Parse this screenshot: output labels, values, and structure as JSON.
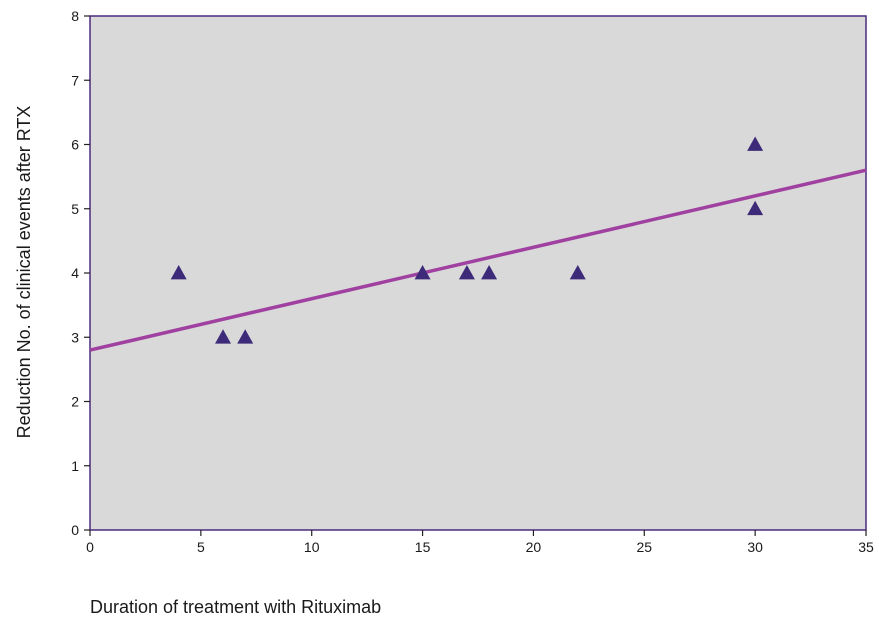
{
  "chart_data": {
    "type": "scatter",
    "title": "",
    "xlabel": "Duration of treatment with Rituximab",
    "ylabel": "Reduction No. of clinical events after RTX",
    "xlim": [
      0,
      35
    ],
    "ylim": [
      0,
      8
    ],
    "x_ticks": [
      "0",
      "5",
      "10",
      "15",
      "20",
      "25",
      "30",
      "35"
    ],
    "y_ticks": [
      "0",
      "1",
      "2",
      "3",
      "4",
      "5",
      "6",
      "7",
      "8"
    ],
    "grid": false,
    "plot_background": "#d9d9d9",
    "frame_color": "#4b2a7e",
    "point_marker": "triangle",
    "point_color": "#3d2a78",
    "line_color": "#a040a0",
    "points": [
      {
        "x": 4,
        "y": 4
      },
      {
        "x": 6,
        "y": 3
      },
      {
        "x": 7,
        "y": 3
      },
      {
        "x": 15,
        "y": 4
      },
      {
        "x": 17,
        "y": 4
      },
      {
        "x": 18,
        "y": 4
      },
      {
        "x": 22,
        "y": 4
      },
      {
        "x": 30,
        "y": 6
      },
      {
        "x": 30,
        "y": 5
      }
    ],
    "fit_line": {
      "type": "linear",
      "start": {
        "x": 0,
        "y": 2.8
      },
      "end": {
        "x": 35,
        "y": 5.6
      }
    }
  }
}
